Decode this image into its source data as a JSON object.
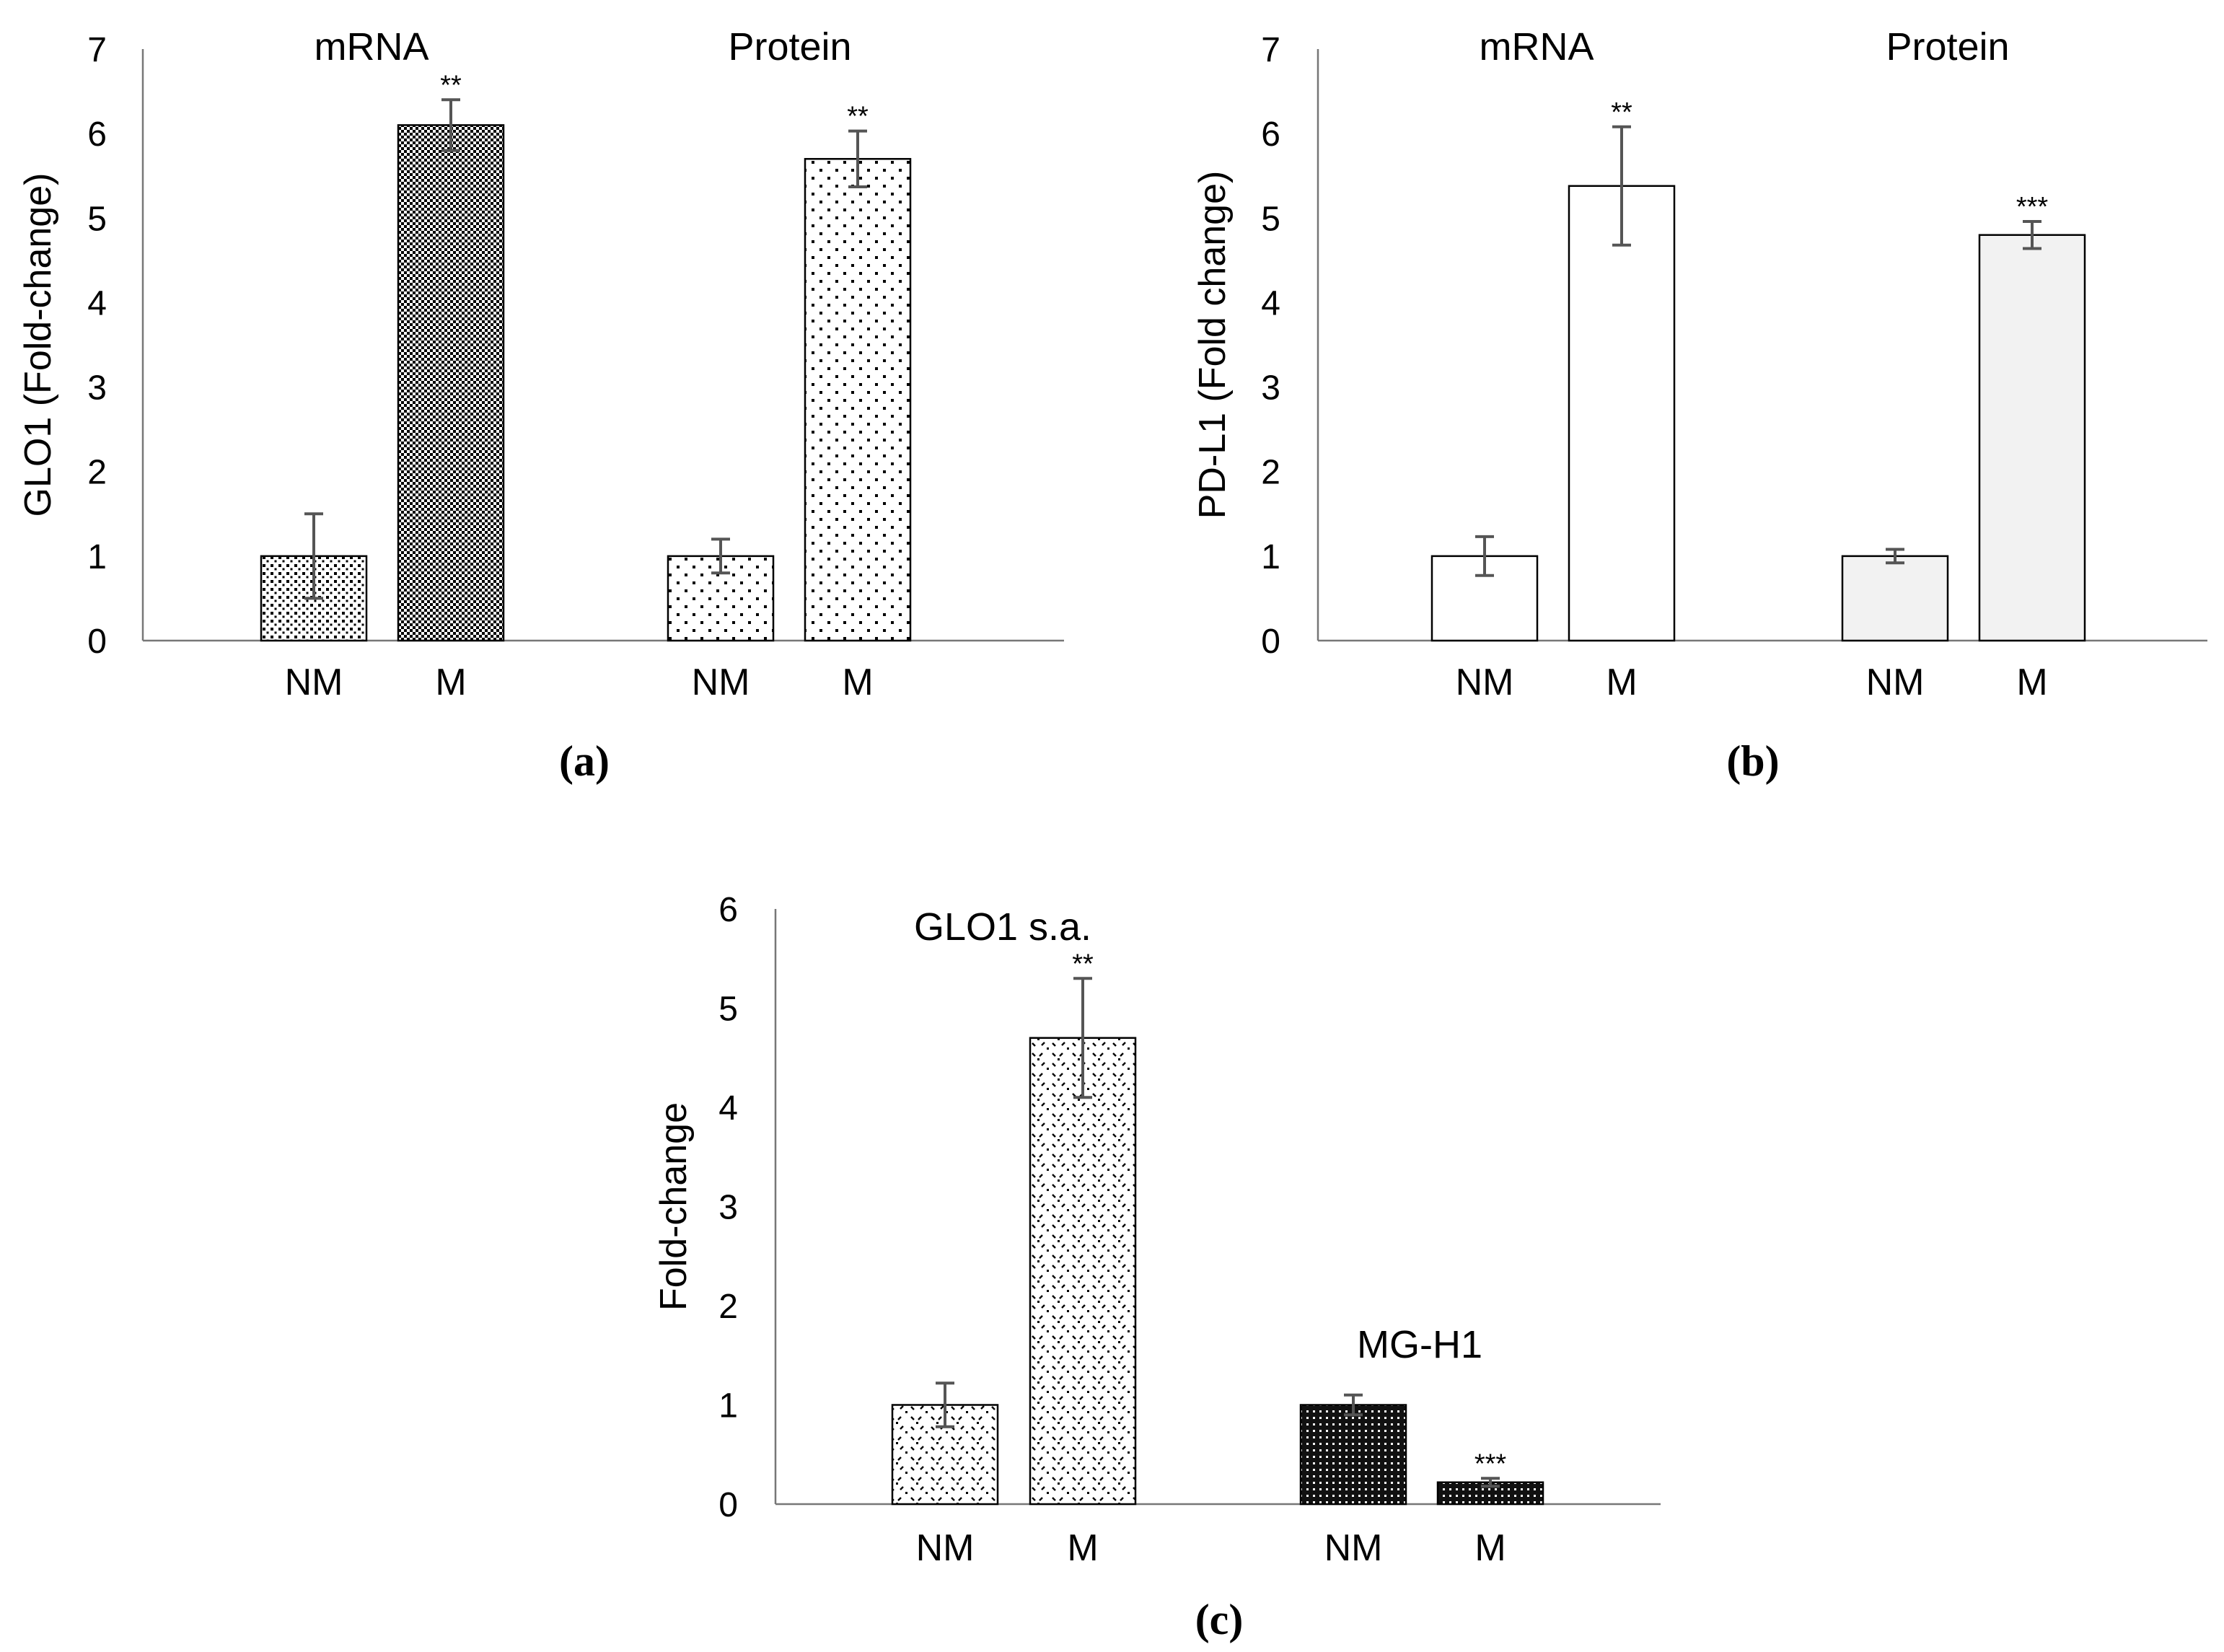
{
  "chart_data": [
    {
      "type": "bar",
      "panel_label": "(a)",
      "title": "",
      "xlabel": "",
      "ylabel": "GLO1 (Fold-change)",
      "ylim": [
        0,
        7
      ],
      "yticks": [
        "0",
        "1",
        "2",
        "3",
        "4",
        "5",
        "6",
        "7"
      ],
      "groups": [
        {
          "label": "mRNA",
          "bars": [
            {
              "category": "NM",
              "value": 1.0,
              "error": 0.5,
              "sig": "",
              "pattern": "dots-dense",
              "fill": "#ffffff"
            },
            {
              "category": "M",
              "value": 6.1,
              "error": 0.3,
              "sig": "**",
              "pattern": "checker",
              "fill": "#ffffff"
            }
          ]
        },
        {
          "label": "Protein",
          "bars": [
            {
              "category": "NM",
              "value": 1.0,
              "error": 0.2,
              "sig": "",
              "pattern": "dots-sparse",
              "fill": "#ffffff"
            },
            {
              "category": "M",
              "value": 5.7,
              "error": 0.33,
              "sig": "**",
              "pattern": "dots-sparse",
              "fill": "#ffffff"
            }
          ]
        }
      ]
    },
    {
      "type": "bar",
      "panel_label": "(b)",
      "title": "",
      "xlabel": "",
      "ylabel": "PD-L1 (Fold change)",
      "ylim": [
        0,
        7
      ],
      "yticks": [
        "0",
        "1",
        "2",
        "3",
        "4",
        "5",
        "6",
        "7"
      ],
      "groups": [
        {
          "label": "mRNA",
          "bars": [
            {
              "category": "NM",
              "value": 1.0,
              "error": 0.23,
              "sig": "",
              "pattern": "solid",
              "fill": "#ffffff"
            },
            {
              "category": "M",
              "value": 5.38,
              "error": 0.7,
              "sig": "**",
              "pattern": "solid",
              "fill": "#ffffff"
            }
          ]
        },
        {
          "label": "Protein",
          "bars": [
            {
              "category": "NM",
              "value": 1.0,
              "error": 0.08,
              "sig": "",
              "pattern": "solid",
              "fill": "#f2f2f2"
            },
            {
              "category": "M",
              "value": 4.8,
              "error": 0.16,
              "sig": "***",
              "pattern": "solid",
              "fill": "#f2f2f2"
            }
          ]
        }
      ]
    },
    {
      "type": "bar",
      "panel_label": "(c)",
      "title": "",
      "xlabel": "",
      "ylabel": "Fold-change",
      "ylim": [
        0,
        6
      ],
      "yticks": [
        "0",
        "1",
        "2",
        "3",
        "4",
        "5",
        "6"
      ],
      "groups": [
        {
          "label": "GLO1 s.a.",
          "bars": [
            {
              "category": "NM",
              "value": 1.0,
              "error": 0.22,
              "sig": "",
              "pattern": "marks",
              "fill": "#ffffff"
            },
            {
              "category": "M",
              "value": 4.7,
              "error": 0.6,
              "sig": "**",
              "pattern": "marks",
              "fill": "#ffffff"
            }
          ]
        },
        {
          "label": "MG-H1",
          "bars": [
            {
              "category": "NM",
              "value": 1.0,
              "error": 0.1,
              "sig": "",
              "pattern": "dark",
              "fill": "#111111"
            },
            {
              "category": "M",
              "value": 0.22,
              "error": 0.04,
              "sig": "***",
              "pattern": "dark",
              "fill": "#111111"
            }
          ]
        }
      ]
    }
  ]
}
